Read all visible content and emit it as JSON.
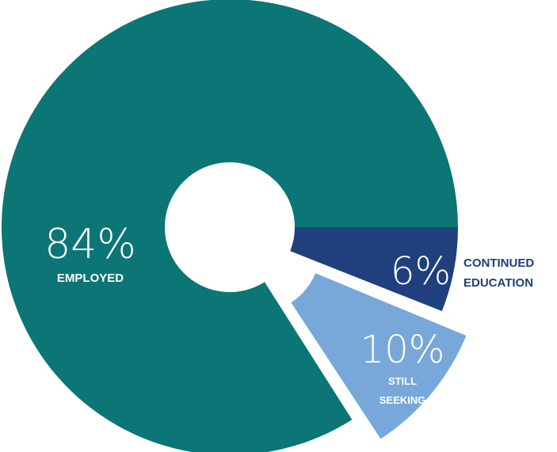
{
  "chart_data": {
    "type": "pie",
    "style": "donut",
    "categories": [
      "EMPLOYED",
      "CONTINUED EDUCATION",
      "STILL SEEKING"
    ],
    "values": [
      84,
      6,
      10
    ],
    "unit": "%",
    "slices": [
      {
        "name": "EMPLOYED",
        "value": 84,
        "value_label": "84%",
        "label_lines": [
          "EMPLOYED"
        ],
        "color": "#0B7675",
        "exploded": false
      },
      {
        "name": "CONTINUED EDUCATION",
        "value": 6,
        "value_label": "6%",
        "label_lines": [
          "CONTINUED",
          "EDUCATION"
        ],
        "color": "#1F3F7D",
        "exploded": false
      },
      {
        "name": "STILL SEEKING",
        "value": 10,
        "value_label": "10%",
        "label_lines": [
          "STILL",
          "SEEKING"
        ],
        "color": "#78A8DA",
        "exploded": true
      }
    ],
    "label_color_dark": "#1F3F7D",
    "label_color_light": "#ffffff",
    "legend": "none"
  }
}
